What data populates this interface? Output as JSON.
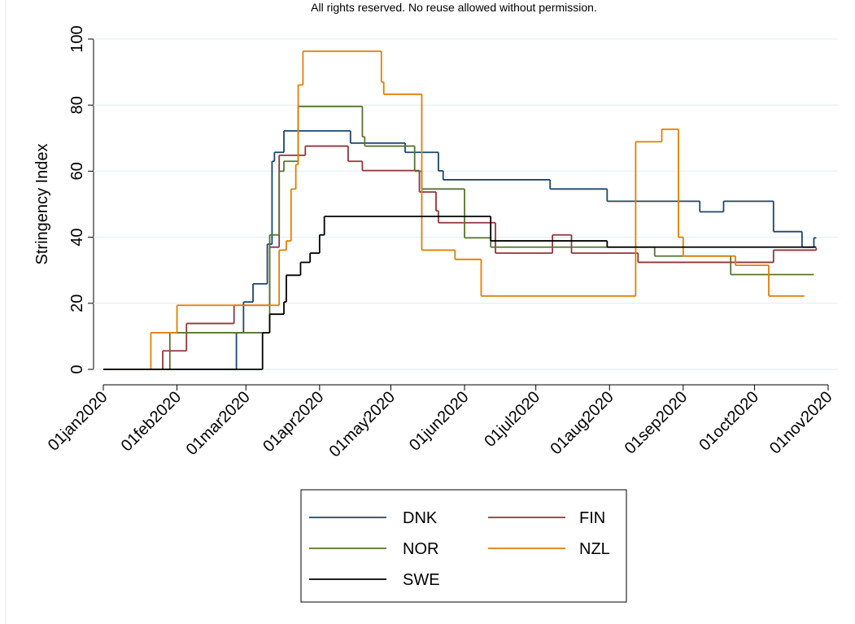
{
  "chart_data": {
    "type": "line",
    "note": "All rights reserved. No reuse allowed without permission.",
    "y_label": "Stringency Index",
    "xlim": [
      "2020-01-01",
      "2020-11-01"
    ],
    "xticks": [
      {
        "value": "2020-01-01",
        "label": "01jan2020"
      },
      {
        "value": "2020-02-01",
        "label": "01feb2020"
      },
      {
        "value": "2020-03-01",
        "label": "01mar2020"
      },
      {
        "value": "2020-04-01",
        "label": "01apr2020"
      },
      {
        "value": "2020-05-01",
        "label": "01may2020"
      },
      {
        "value": "2020-06-01",
        "label": "01jun2020"
      },
      {
        "value": "2020-07-01",
        "label": "01jul2020"
      },
      {
        "value": "2020-08-01",
        "label": "01aug2020"
      },
      {
        "value": "2020-09-01",
        "label": "01sep2020"
      },
      {
        "value": "2020-10-01",
        "label": "01oct2020"
      },
      {
        "value": "2020-11-01",
        "label": "01nov2020"
      }
    ],
    "ylim": [
      0,
      100
    ],
    "yticks": [
      0,
      20,
      40,
      60,
      80,
      100
    ],
    "grid": true,
    "legend": "bottom",
    "series": [
      {
        "name": "DNK",
        "color": "#1a476f",
        "x": [
          "2020-01-01",
          "2020-02-26",
          "2020-02-29",
          "2020-03-04",
          "2020-03-10",
          "2020-03-12",
          "2020-03-13",
          "2020-03-17",
          "2020-04-14",
          "2020-05-07",
          "2020-05-21",
          "2020-05-23",
          "2020-07-07",
          "2020-07-31",
          "2020-09-08",
          "2020-09-18",
          "2020-10-09",
          "2020-10-21",
          "2020-10-26",
          "2020-10-27"
        ],
        "values": [
          0,
          11.1,
          20.4,
          25.9,
          37.9,
          63,
          65.7,
          72.2,
          68.5,
          65.7,
          60.1,
          57.4,
          54.6,
          50.9,
          47.7,
          50.9,
          41.7,
          37,
          39.8,
          39.8
        ]
      },
      {
        "name": "FIN",
        "color": "#90353b",
        "x": [
          "2020-01-01",
          "2020-01-26",
          "2020-02-05",
          "2020-02-25",
          "2020-03-11",
          "2020-03-15",
          "2020-03-26",
          "2020-04-13",
          "2020-04-19",
          "2020-05-13",
          "2020-05-20",
          "2020-05-21",
          "2020-06-14",
          "2020-07-08",
          "2020-07-16",
          "2020-08-13",
          "2020-10-09",
          "2020-10-27"
        ],
        "values": [
          0,
          5.6,
          13.9,
          19.4,
          37,
          64.8,
          67.6,
          63,
          60.2,
          53.7,
          48,
          44.4,
          35.2,
          40.7,
          35.2,
          32.4,
          36.1,
          36.7
        ]
      },
      {
        "name": "NOR",
        "color": "#55752f",
        "x": [
          "2020-01-01",
          "2020-01-29",
          "2020-03-11",
          "2020-03-15",
          "2020-03-17",
          "2020-03-23",
          "2020-04-19",
          "2020-04-20",
          "2020-05-11",
          "2020-05-14",
          "2020-06-01",
          "2020-06-12",
          "2020-08-20",
          "2020-09-21",
          "2020-10-26"
        ],
        "values": [
          0,
          11.1,
          40.7,
          60,
          63,
          79.6,
          70.4,
          67.6,
          60,
          54.6,
          39.8,
          37,
          34.3,
          28.7,
          28.7
        ]
      },
      {
        "name": "NZL",
        "color": "#e37e00",
        "x": [
          "2020-01-01",
          "2020-01-21",
          "2020-02-01",
          "2020-03-15",
          "2020-03-18",
          "2020-03-20",
          "2020-03-22",
          "2020-03-23",
          "2020-03-25",
          "2020-04-27",
          "2020-04-28",
          "2020-05-14",
          "2020-05-28",
          "2020-06-08",
          "2020-08-12",
          "2020-08-23",
          "2020-08-30",
          "2020-09-01",
          "2020-09-23",
          "2020-10-07",
          "2020-10-22"
        ],
        "values": [
          0,
          11.1,
          19.4,
          36.1,
          38.9,
          54.6,
          62,
          86.1,
          96.3,
          87,
          83.3,
          36.1,
          33.3,
          22.2,
          68.9,
          72.7,
          40,
          34.3,
          31.5,
          22.2,
          22.2
        ]
      },
      {
        "name": "SWE",
        "color": "#000000",
        "x": [
          "2020-01-01",
          "2020-03-08",
          "2020-03-11",
          "2020-03-17",
          "2020-03-18",
          "2020-03-24",
          "2020-03-28",
          "2020-04-01",
          "2020-04-03",
          "2020-06-12",
          "2020-07-31",
          "2020-10-27"
        ],
        "values": [
          0,
          11.1,
          16.7,
          20.4,
          28.5,
          32.4,
          35.2,
          40.7,
          46.3,
          38.9,
          37,
          37
        ]
      }
    ]
  }
}
